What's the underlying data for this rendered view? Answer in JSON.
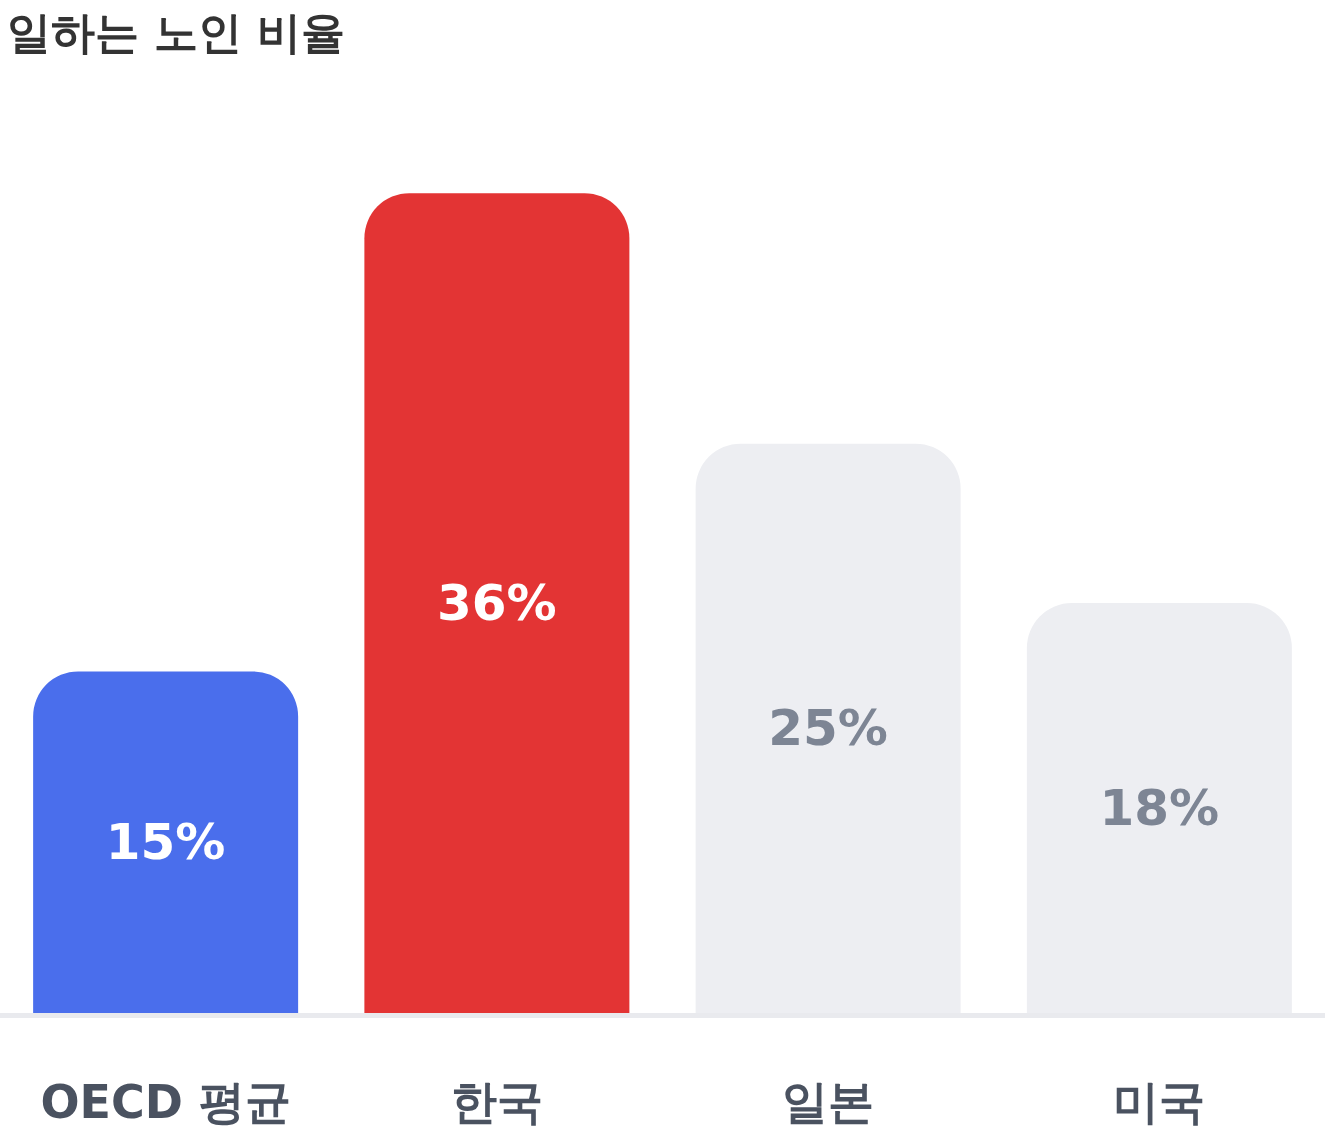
{
  "chart_data": {
    "type": "bar",
    "title": "일하는 노인 비율",
    "categories": [
      "OECD 평균",
      "한국",
      "일본",
      "미국"
    ],
    "values": [
      15,
      36,
      25,
      18
    ],
    "colors": [
      "#4a6eec",
      "#e33434",
      "#edeef2",
      "#edeef2"
    ],
    "value_labels": [
      "15%",
      "36%",
      "25%",
      "18%"
    ]
  }
}
